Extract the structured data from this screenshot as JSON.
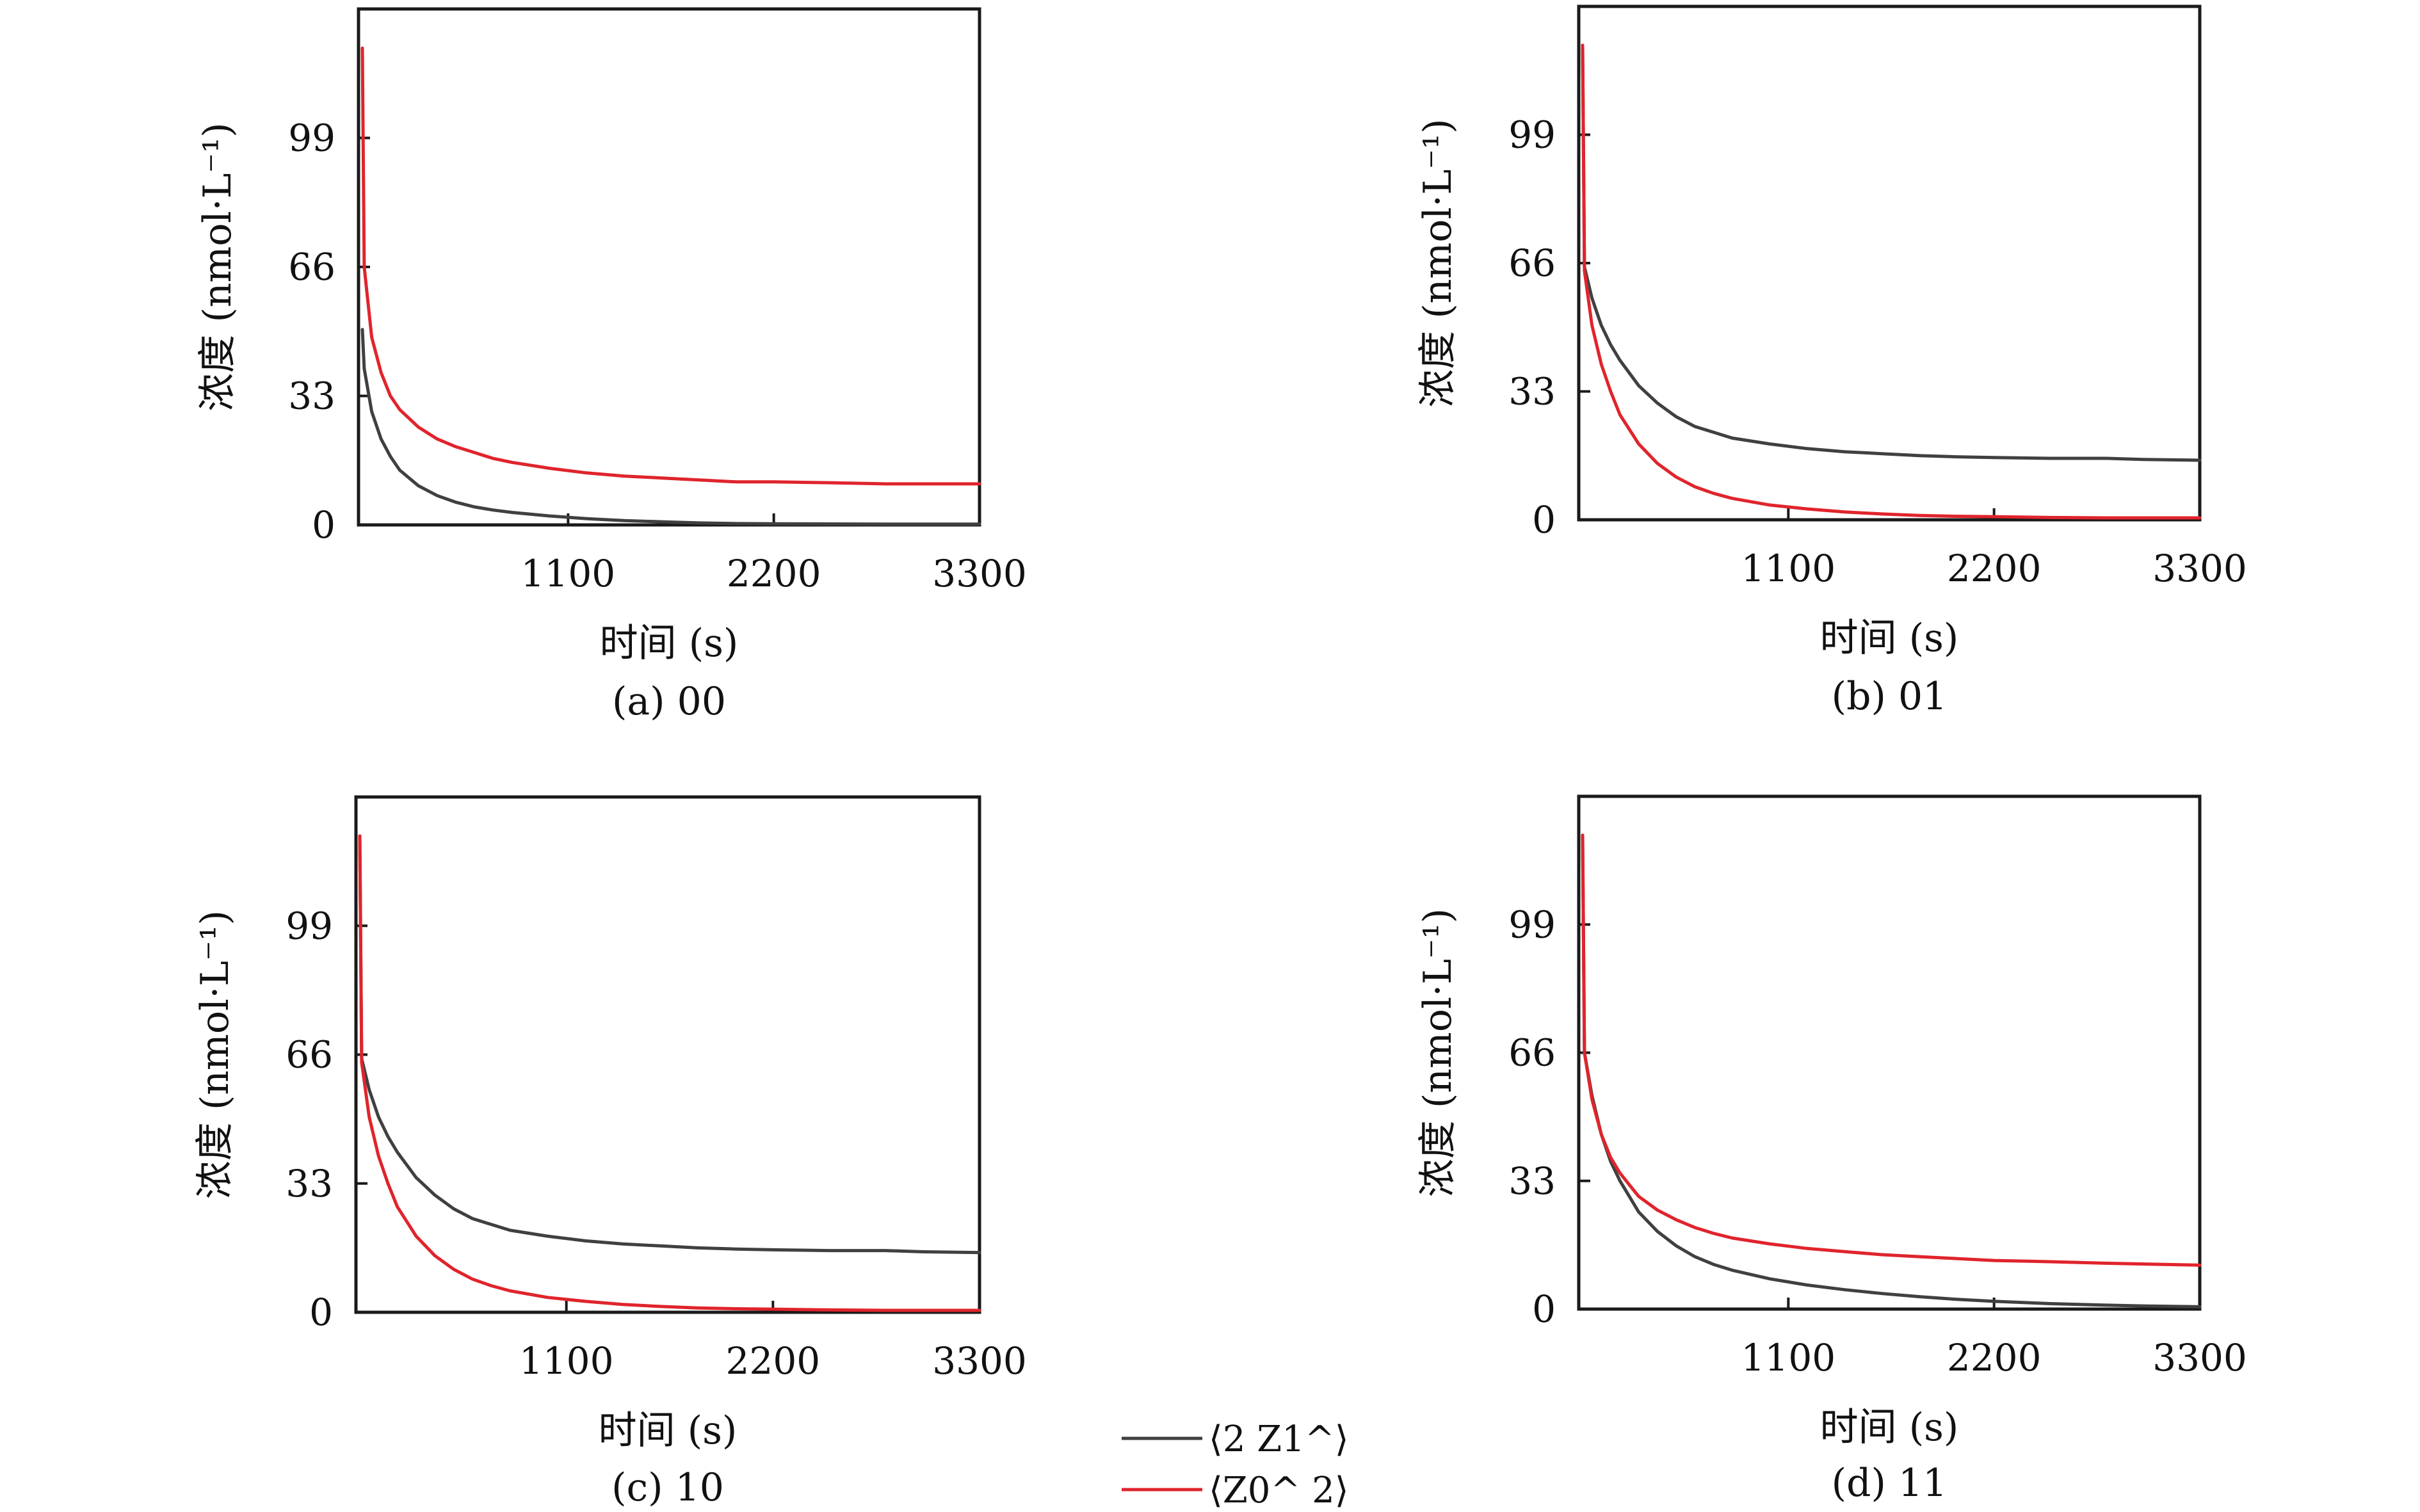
{
  "legend": [
    {
      "name": "⟨2 Z1^⟩",
      "color": "#404040"
    },
    {
      "name": "⟨Z0^ 2⟩",
      "color": "#e0242c"
    }
  ],
  "chart_data": [
    {
      "type": "line",
      "caption": "(a) 00",
      "xlabel": "时间 (s)",
      "ylabel": "浓度 (nmol·L⁻¹)",
      "xlim": [
        0,
        3300
      ],
      "ylim": [
        0,
        132
      ],
      "xticks": [
        1100,
        2200,
        3300
      ],
      "yticks": [
        0,
        33,
        66,
        99
      ],
      "series": [
        {
          "name": "⟨2 Z1^⟩",
          "color": "#404040",
          "x": [
            0,
            10,
            50,
            100,
            150,
            200,
            300,
            400,
            500,
            600,
            700,
            800,
            1000,
            1200,
            1400,
            1600,
            1800,
            2000,
            2200,
            2500,
            2800,
            3000,
            3300
          ],
          "y": [
            50,
            40,
            29,
            22,
            17.5,
            14,
            10,
            7.5,
            5.8,
            4.6,
            3.8,
            3.2,
            2.3,
            1.6,
            1.1,
            0.8,
            0.5,
            0.35,
            0.3,
            0.25,
            0.2,
            0.2,
            0.2
          ]
        },
        {
          "name": "⟨Z0^ 2⟩",
          "color": "#e0242c",
          "x": [
            0,
            10,
            50,
            100,
            150,
            200,
            300,
            400,
            500,
            600,
            700,
            800,
            1000,
            1200,
            1400,
            1600,
            1800,
            2000,
            2200,
            2500,
            2800,
            3000,
            3300
          ],
          "y": [
            122,
            66,
            48,
            39,
            33,
            29.5,
            25,
            22,
            20,
            18.5,
            17,
            16,
            14.5,
            13.3,
            12.5,
            12,
            11.5,
            11,
            11,
            10.8,
            10.5,
            10.5,
            10.5
          ]
        }
      ]
    },
    {
      "type": "line",
      "caption": "(b) 01",
      "xlabel": "时间 (s)",
      "ylabel": "浓度 (nmol·L⁻¹)",
      "xlim": [
        0,
        3300
      ],
      "ylim": [
        0,
        132
      ],
      "xticks": [
        1100,
        2200,
        3300
      ],
      "yticks": [
        0,
        33,
        66,
        99
      ],
      "series": [
        {
          "name": "⟨2 Z1^⟩",
          "color": "#404040",
          "x": [
            0,
            10,
            50,
            100,
            150,
            200,
            300,
            400,
            500,
            600,
            700,
            800,
            1000,
            1200,
            1400,
            1600,
            1800,
            2000,
            2200,
            2500,
            2800,
            3000,
            3300
          ],
          "y": [
            122,
            65,
            57,
            50,
            45,
            41,
            34.5,
            30,
            26.5,
            24,
            22.5,
            21,
            19.5,
            18.3,
            17.5,
            17,
            16.5,
            16.2,
            16,
            15.8,
            15.8,
            15.5,
            15.3
          ]
        },
        {
          "name": "⟨Z0^ 2⟩",
          "color": "#e0242c",
          "x": [
            0,
            10,
            50,
            100,
            150,
            200,
            300,
            400,
            500,
            600,
            700,
            800,
            1000,
            1200,
            1400,
            1600,
            1800,
            2000,
            2200,
            2500,
            2800,
            3000,
            3300
          ],
          "y": [
            122,
            64,
            50,
            40,
            33,
            27,
            19.5,
            14.5,
            11,
            8.5,
            6.8,
            5.5,
            3.8,
            2.8,
            2,
            1.5,
            1.1,
            0.9,
            0.8,
            0.6,
            0.5,
            0.5,
            0.5
          ]
        }
      ]
    },
    {
      "type": "line",
      "caption": "(c) 10",
      "xlabel": "时间 (s)",
      "ylabel": "浓度 (nmol·L⁻¹)",
      "xlim": [
        0,
        3300
      ],
      "ylim": [
        0,
        132
      ],
      "xticks": [
        1100,
        2200,
        3300
      ],
      "yticks": [
        0,
        33,
        66,
        99
      ],
      "series": [
        {
          "name": "⟨2 Z1^⟩",
          "color": "#404040",
          "x": [
            0,
            10,
            50,
            100,
            150,
            200,
            300,
            400,
            500,
            600,
            700,
            800,
            1000,
            1200,
            1400,
            1600,
            1800,
            2000,
            2200,
            2500,
            2800,
            3000,
            3300
          ],
          "y": [
            122,
            65,
            57,
            50,
            45,
            41,
            34.5,
            30,
            26.5,
            24,
            22.5,
            21,
            19.5,
            18.3,
            17.5,
            17,
            16.5,
            16.2,
            16,
            15.8,
            15.8,
            15.5,
            15.3
          ]
        },
        {
          "name": "⟨Z0^ 2⟩",
          "color": "#e0242c",
          "x": [
            0,
            10,
            50,
            100,
            150,
            200,
            300,
            400,
            500,
            600,
            700,
            800,
            1000,
            1200,
            1400,
            1600,
            1800,
            2000,
            2200,
            2500,
            2800,
            3000,
            3300
          ],
          "y": [
            122,
            64,
            50,
            40,
            33,
            27,
            19.5,
            14.5,
            11,
            8.5,
            6.8,
            5.5,
            3.8,
            2.8,
            2,
            1.5,
            1.1,
            0.9,
            0.8,
            0.6,
            0.5,
            0.5,
            0.5
          ]
        }
      ]
    },
    {
      "type": "line",
      "caption": "(d) 11",
      "xlabel": "时间 (s)",
      "ylabel": "浓度 (nmol·L⁻¹)",
      "xlim": [
        0,
        3300
      ],
      "ylim": [
        0,
        132
      ],
      "xticks": [
        1100,
        2200,
        3300
      ],
      "yticks": [
        0,
        33,
        66,
        99
      ],
      "series": [
        {
          "name": "⟨2 Z1^⟩",
          "color": "#404040",
          "x": [
            0,
            10,
            50,
            100,
            150,
            200,
            300,
            400,
            500,
            600,
            700,
            800,
            1000,
            1200,
            1400,
            1600,
            1800,
            2000,
            2200,
            2500,
            2800,
            3000,
            3300
          ],
          "y": [
            122,
            66,
            55,
            45,
            38,
            33,
            25,
            20,
            16.3,
            13.5,
            11.5,
            10,
            7.8,
            6.2,
            5,
            4,
            3.2,
            2.5,
            2,
            1.4,
            1,
            0.8,
            0.6
          ]
        },
        {
          "name": "⟨Z0^ 2⟩",
          "color": "#e0242c",
          "x": [
            0,
            10,
            50,
            100,
            150,
            200,
            300,
            400,
            500,
            600,
            700,
            800,
            1000,
            1200,
            1400,
            1600,
            1800,
            2000,
            2200,
            2500,
            2800,
            3000,
            3300
          ],
          "y": [
            122,
            66,
            54,
            45,
            39,
            35,
            29,
            25.5,
            23,
            21,
            19.5,
            18.3,
            16.8,
            15.6,
            14.8,
            14,
            13.5,
            13,
            12.5,
            12.2,
            11.8,
            11.6,
            11.3
          ]
        }
      ]
    }
  ]
}
